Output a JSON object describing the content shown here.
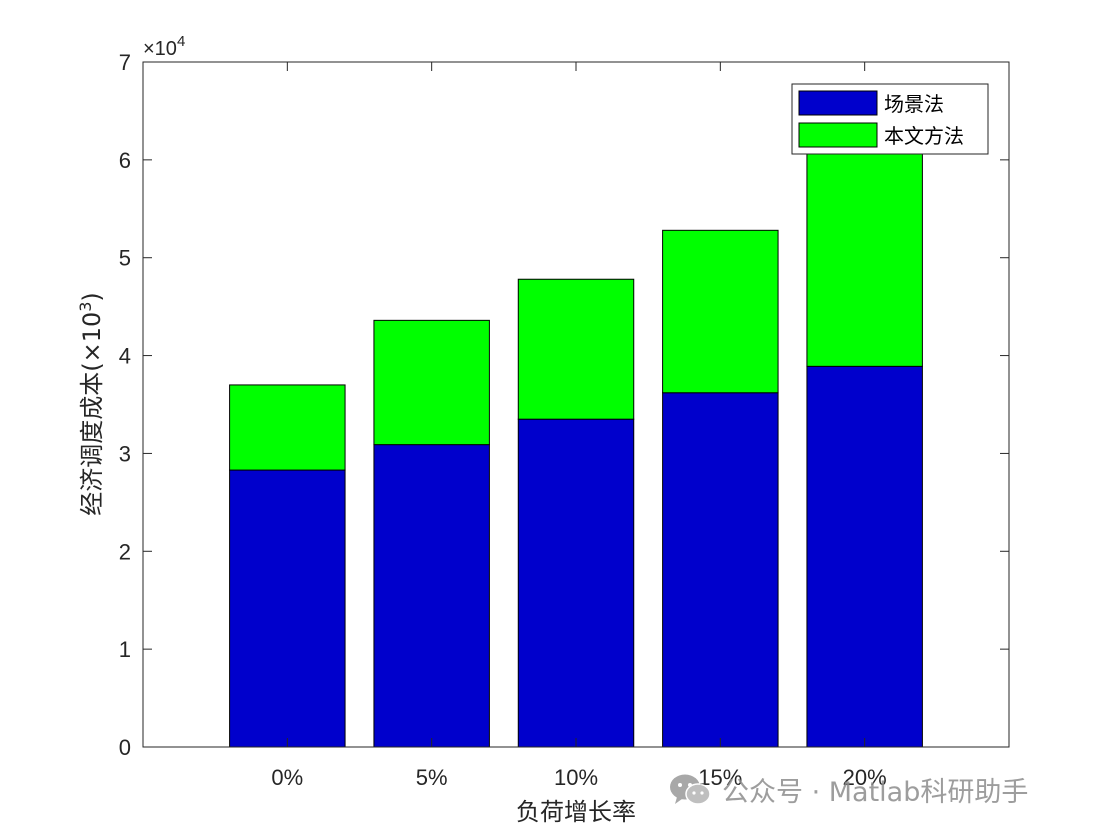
{
  "chart_data": {
    "type": "bar",
    "stacked": true,
    "categories": [
      "0%",
      "5%",
      "10%",
      "15%",
      "20%"
    ],
    "series": [
      {
        "name": "场景法",
        "color": "#0000cc",
        "values": [
          28300,
          30900,
          33500,
          36200,
          38900
        ]
      },
      {
        "name": "本文方法",
        "color": "#00ff00",
        "values": [
          8700,
          12700,
          14300,
          16600,
          23200
        ]
      }
    ],
    "xlabel": "负荷增长率",
    "ylabel": "经济调度成本(×10",
    "ylabel_superscript": "3",
    "ylabel_close": ")",
    "ylim": [
      0,
      70000
    ],
    "yticks": [
      0,
      10000,
      20000,
      30000,
      40000,
      50000,
      60000,
      70000
    ],
    "ytick_labels": [
      "0",
      "1",
      "2",
      "3",
      "4",
      "5",
      "6",
      "7"
    ],
    "y_exponent_prefix": "×10",
    "y_exponent": "4",
    "grid": false,
    "legend_position": "top-right"
  },
  "watermark": {
    "text": "公众号 · Matlab科研助手",
    "icon": "wechat-icon"
  }
}
